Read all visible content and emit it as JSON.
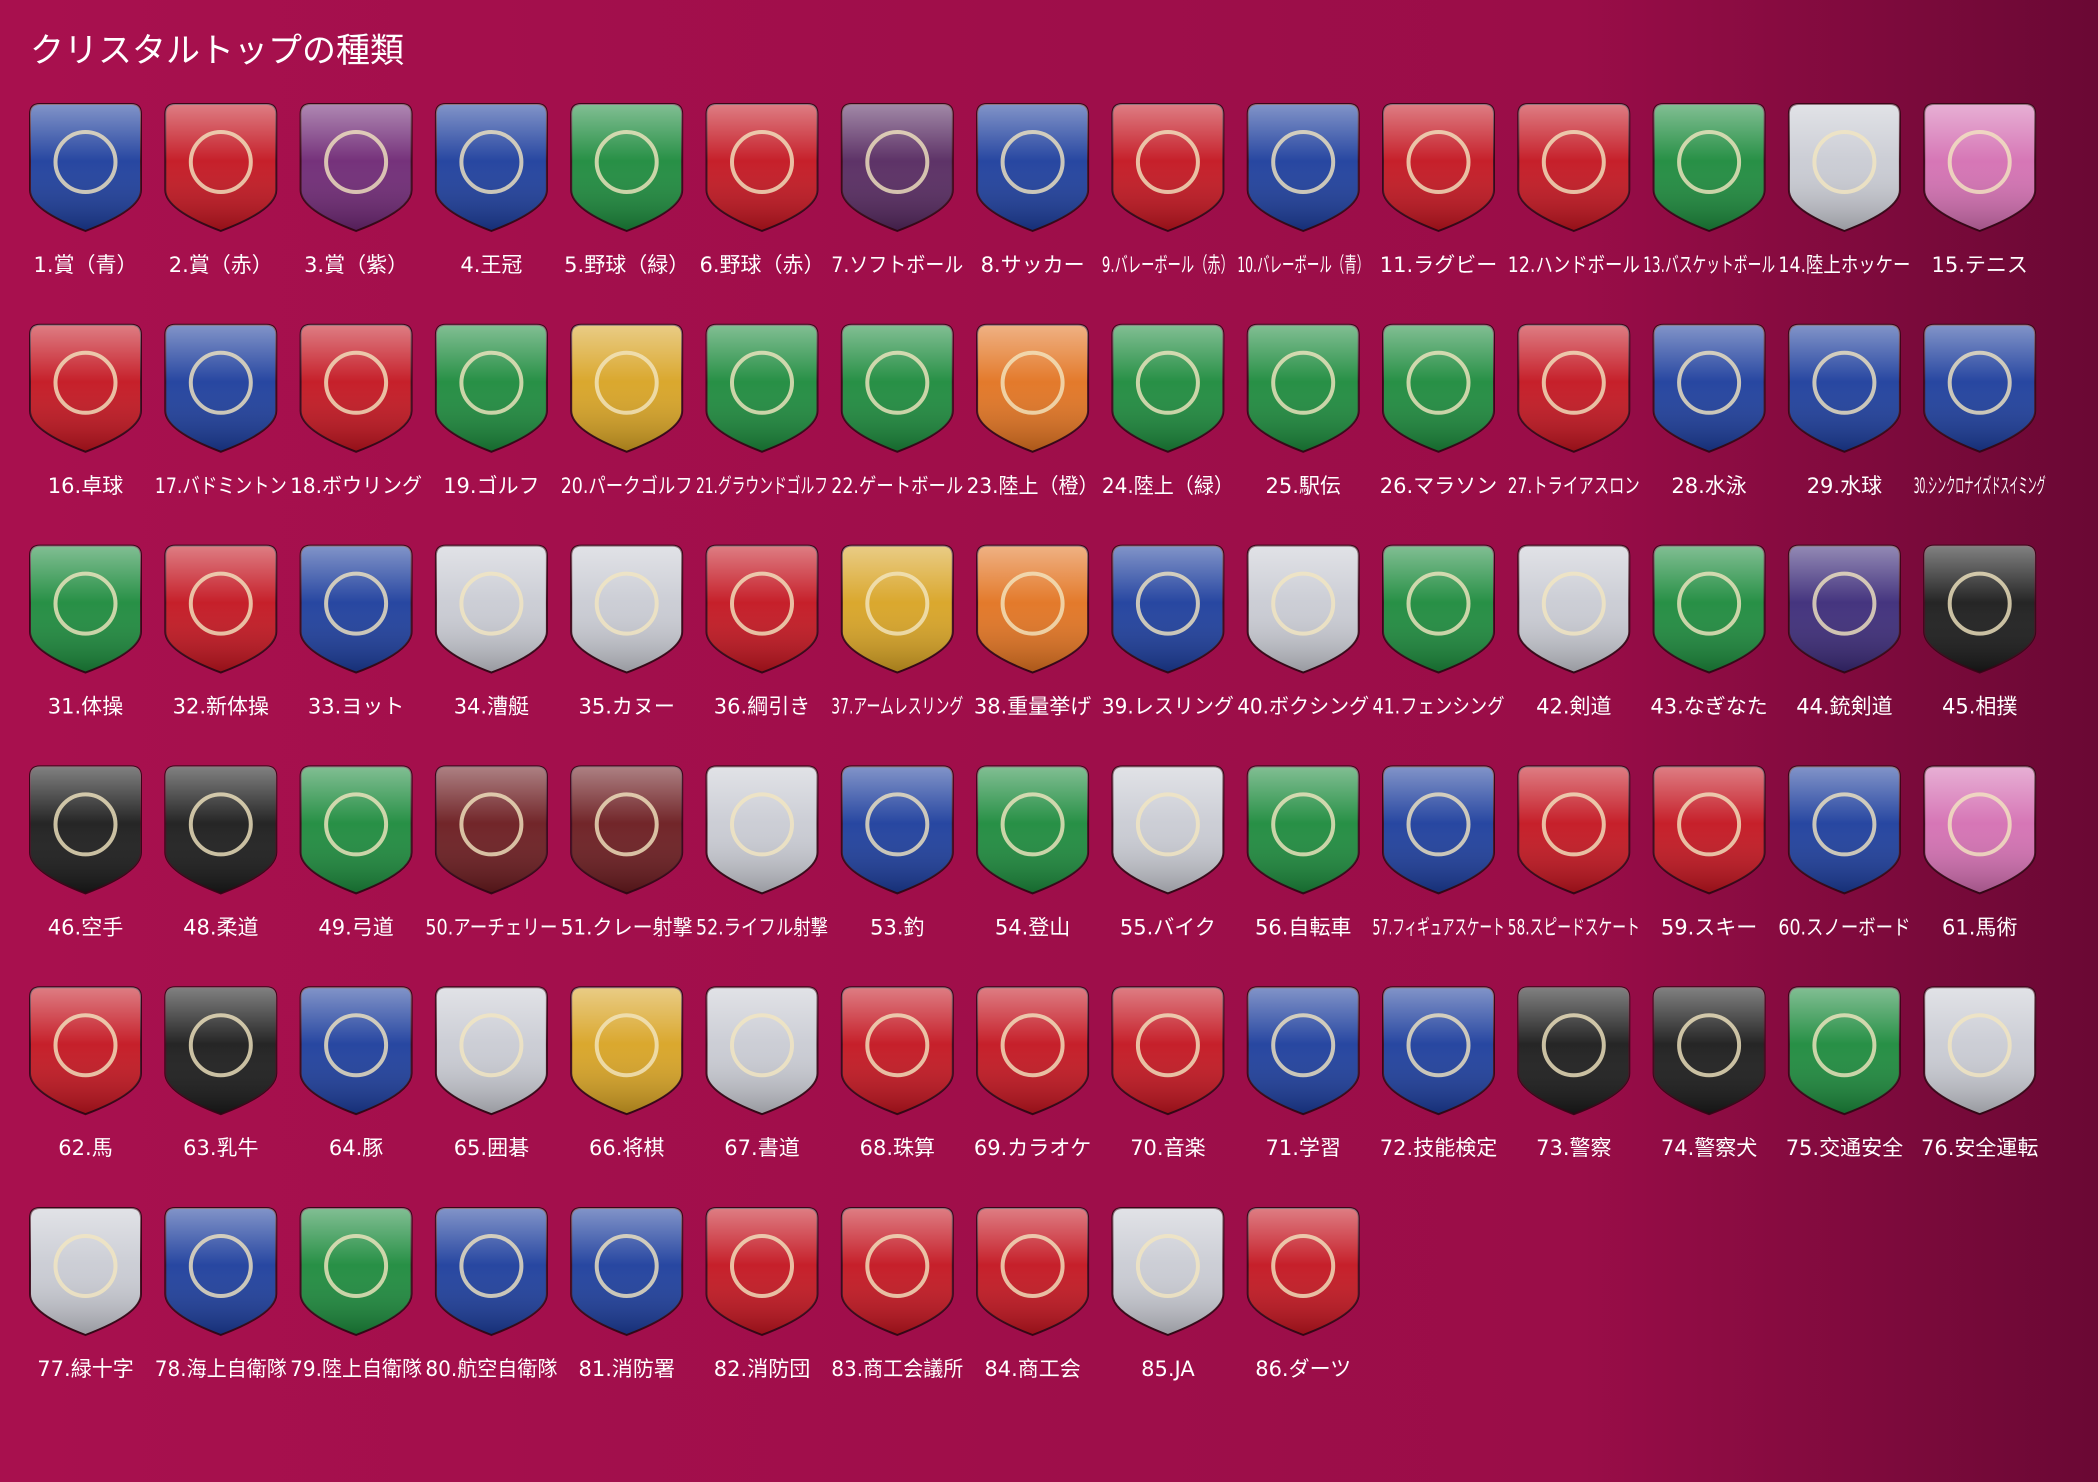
{
  "header": {
    "title": "クリスタルトップの種類"
  },
  "items": [
    "1.賞（青）",
    "2.賞（赤）",
    "3.賞（紫）",
    "4.王冠",
    "5.野球（緑）",
    "6.野球（赤）",
    "7.ソフトボール",
    "8.サッカー",
    "9.バレーボール（赤）",
    "10.バレーボール（青）",
    "11.ラグビー",
    "12.ハンドボール",
    "13.バスケットボール",
    "14.陸上ホッケー",
    "15.テニス",
    "16.卓球",
    "17.バドミントン",
    "18.ボウリング",
    "19.ゴルフ",
    "20.パークゴルフ",
    "21.グラウンドゴルフ",
    "22.ゲートボール",
    "23.陸上（橙）",
    "24.陸上（緑）",
    "25.駅伝",
    "26.マラソン",
    "27.トライアスロン",
    "28.水泳",
    "29.水球",
    "30.シンクロナイズドスイミング",
    "31.体操",
    "32.新体操",
    "33.ヨット",
    "34.漕艇",
    "35.カヌー",
    "36.綱引き",
    "37.アームレスリング",
    "38.重量挙げ",
    "39.レスリング",
    "40.ボクシング",
    "41.フェンシング",
    "42.剣道",
    "43.なぎなた",
    "44.銃剣道",
    "45.相撲",
    "46.空手",
    "48.柔道",
    "49.弓道",
    "50.アーチェリー",
    "51.クレー射撃",
    "52.ライフル射撃",
    "53.釣",
    "54.登山",
    "55.バイク",
    "56.自転車",
    "57.フィギュアスケート",
    "58.スピードスケート",
    "59.スキー",
    "60.スノーボード",
    "61.馬術",
    "62.馬",
    "63.乳牛",
    "64.豚",
    "65.囲碁",
    "66.将棋",
    "67.書道",
    "68.珠算",
    "69.カラオケ",
    "70.音楽",
    "71.学習",
    "72.技能検定",
    "73.警察",
    "74.警察犬",
    "75.交通安全",
    "76.安全運転",
    "77.緑十字",
    "78.海上自衛隊",
    "79.陸上自衛隊",
    "80.航空自衛隊",
    "81.消防署",
    "82.消防団",
    "83.商工会議所",
    "84.商工会",
    "85.JA",
    "86.ダーツ"
  ]
}
